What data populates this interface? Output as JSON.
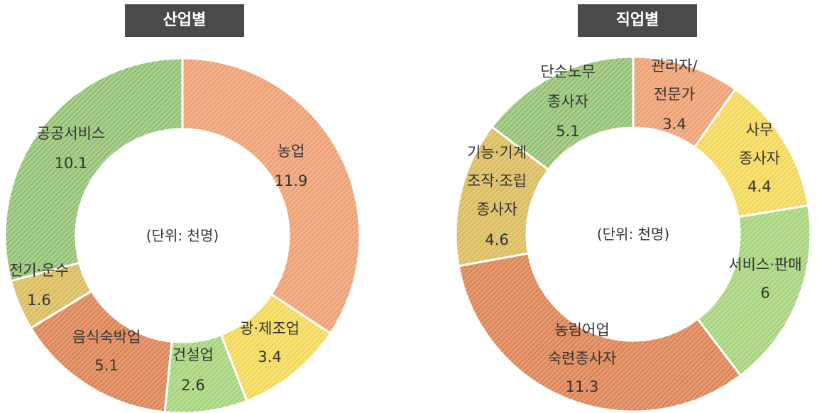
{
  "chart_data": [
    {
      "type": "pie",
      "title": "산업별",
      "unit_note": "(단위: 천명)",
      "slices": [
        {
          "label": "농업",
          "value": 11.9,
          "value_text": "11.9",
          "color": "#f2b38c",
          "stroke": "#e57f4a"
        },
        {
          "label": "광·제조업",
          "value": 3.4,
          "value_text": "3.4",
          "color": "#f7e27a",
          "stroke": "#e8c21a"
        },
        {
          "label": "건설업",
          "value": 2.6,
          "value_text": "2.6",
          "color": "#b9dd95",
          "stroke": "#7fbf4f"
        },
        {
          "label": "음식숙박업",
          "value": 5.1,
          "value_text": "5.1",
          "color": "#e59a72",
          "stroke": "#c8602f"
        },
        {
          "label": "전기·운수",
          "value": 1.6,
          "value_text": "1.6",
          "color": "#e3c97a",
          "stroke": "#c7a332"
        },
        {
          "label": "공공서비스",
          "value": 10.1,
          "value_text": "10.1",
          "color": "#a9d08e",
          "stroke": "#6da14a"
        }
      ]
    },
    {
      "type": "pie",
      "title": "직업별",
      "unit_note": "(단위: 천명)",
      "slices": [
        {
          "label": "관리자/ 전문가",
          "value": 3.4,
          "value_text": "3.4",
          "color": "#f2b38c",
          "stroke": "#e57f4a"
        },
        {
          "label": "사무 종사자",
          "value": 4.4,
          "value_text": "4.4",
          "color": "#f7e27a",
          "stroke": "#e8c21a"
        },
        {
          "label": "서비스·판매",
          "value": 6,
          "value_text": "6",
          "color": "#b9dd95",
          "stroke": "#7fbf4f"
        },
        {
          "label": "농림어업 숙련종사자",
          "value": 11.3,
          "value_text": "11.3",
          "color": "#e59a72",
          "stroke": "#c8602f"
        },
        {
          "label": "기능·기계 조작·조립 종사자",
          "value": 4.6,
          "value_text": "4.6",
          "color": "#e3c97a",
          "stroke": "#c7a332"
        },
        {
          "label": "단순노무 종사자",
          "value": 5.1,
          "value_text": "5.1",
          "color": "#a9d08e",
          "stroke": "#6da14a"
        }
      ]
    }
  ]
}
